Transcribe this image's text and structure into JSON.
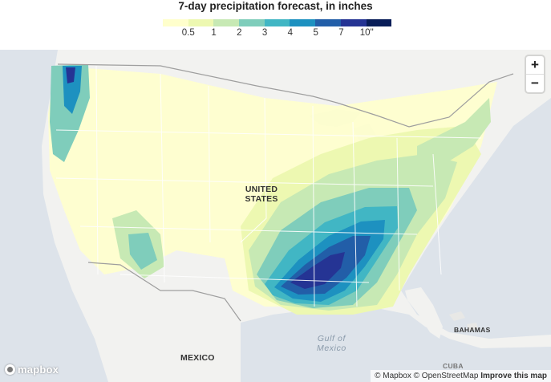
{
  "title": "7-day precipitation forecast, in inches",
  "legend": {
    "colors": [
      "#ffffcc",
      "#edf8b1",
      "#c7e9b4",
      "#7fcdbb",
      "#41b6c4",
      "#1d91c0",
      "#225ea8",
      "#253494",
      "#081d58"
    ],
    "labels": [
      "0.5",
      "1",
      "2",
      "3",
      "4",
      "5",
      "7",
      "10\""
    ]
  },
  "map": {
    "labels": {
      "united_states": "UNITED\nSTATES",
      "mexico": "MEXICO",
      "gulf": "Gulf of\nMexico",
      "bahamas": "BAHAMAS",
      "cuba": "CUBA"
    },
    "zoom_in": "+",
    "zoom_out": "−",
    "logo": "mapbox",
    "attribution": {
      "mapbox": "© Mapbox",
      "osm": "© OpenStreetMap",
      "improve": "Improve this map"
    },
    "colors": {
      "land": "#f2f2f0",
      "water": "#dde3ea",
      "border": "#9e9e9e",
      "state_lines": "#ffffff"
    }
  }
}
